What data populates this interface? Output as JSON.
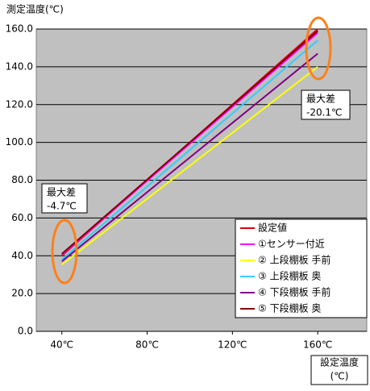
{
  "chart_data": {
    "type": "line",
    "y_label": "測定温度(℃)",
    "x_label": [
      "設定温度",
      "(℃)"
    ],
    "x": [
      40,
      160
    ],
    "xlim": [
      28,
      183
    ],
    "xticks": [
      {
        "value": 40,
        "label": "40℃"
      },
      {
        "value": 80,
        "label": "80℃"
      },
      {
        "value": 120,
        "label": "120℃"
      },
      {
        "value": 160,
        "label": "160℃"
      }
    ],
    "ylim": [
      0,
      160
    ],
    "yticks": [
      {
        "value": 0,
        "label": "0.0"
      },
      {
        "value": 20,
        "label": "20.0"
      },
      {
        "value": 40,
        "label": "40.0"
      },
      {
        "value": 60,
        "label": "60.0"
      },
      {
        "value": 80,
        "label": "80.0"
      },
      {
        "value": 100,
        "label": "100.0"
      },
      {
        "value": 120,
        "label": "120.0"
      },
      {
        "value": 140,
        "label": "140.0"
      },
      {
        "value": 160,
        "label": "160.0"
      }
    ],
    "grid": true,
    "legend": "bottom-right",
    "series": [
      {
        "name": "設定値",
        "color": "#e00000",
        "values": [
          40,
          160
        ]
      },
      {
        "name": "①センサー付近",
        "color": "#ff00ff",
        "values": [
          40.5,
          158
        ]
      },
      {
        "name": "② 上段棚板 手前",
        "color": "#ffff00",
        "values": [
          35.3,
          140
        ]
      },
      {
        "name": "③ 上段棚板 奥",
        "color": "#33ccff",
        "values": [
          38,
          154
        ]
      },
      {
        "name": "④ 下段棚板 手前",
        "color": "#800080",
        "values": [
          37,
          147
        ]
      },
      {
        "name": "⑤ 下段棚板 奥",
        "color": "#800000",
        "values": [
          41,
          159
        ]
      }
    ],
    "annotations": [
      {
        "lines": [
          "最大差",
          "-4.7℃"
        ]
      },
      {
        "lines": [
          "最大差",
          "-20.1℃"
        ]
      }
    ]
  }
}
